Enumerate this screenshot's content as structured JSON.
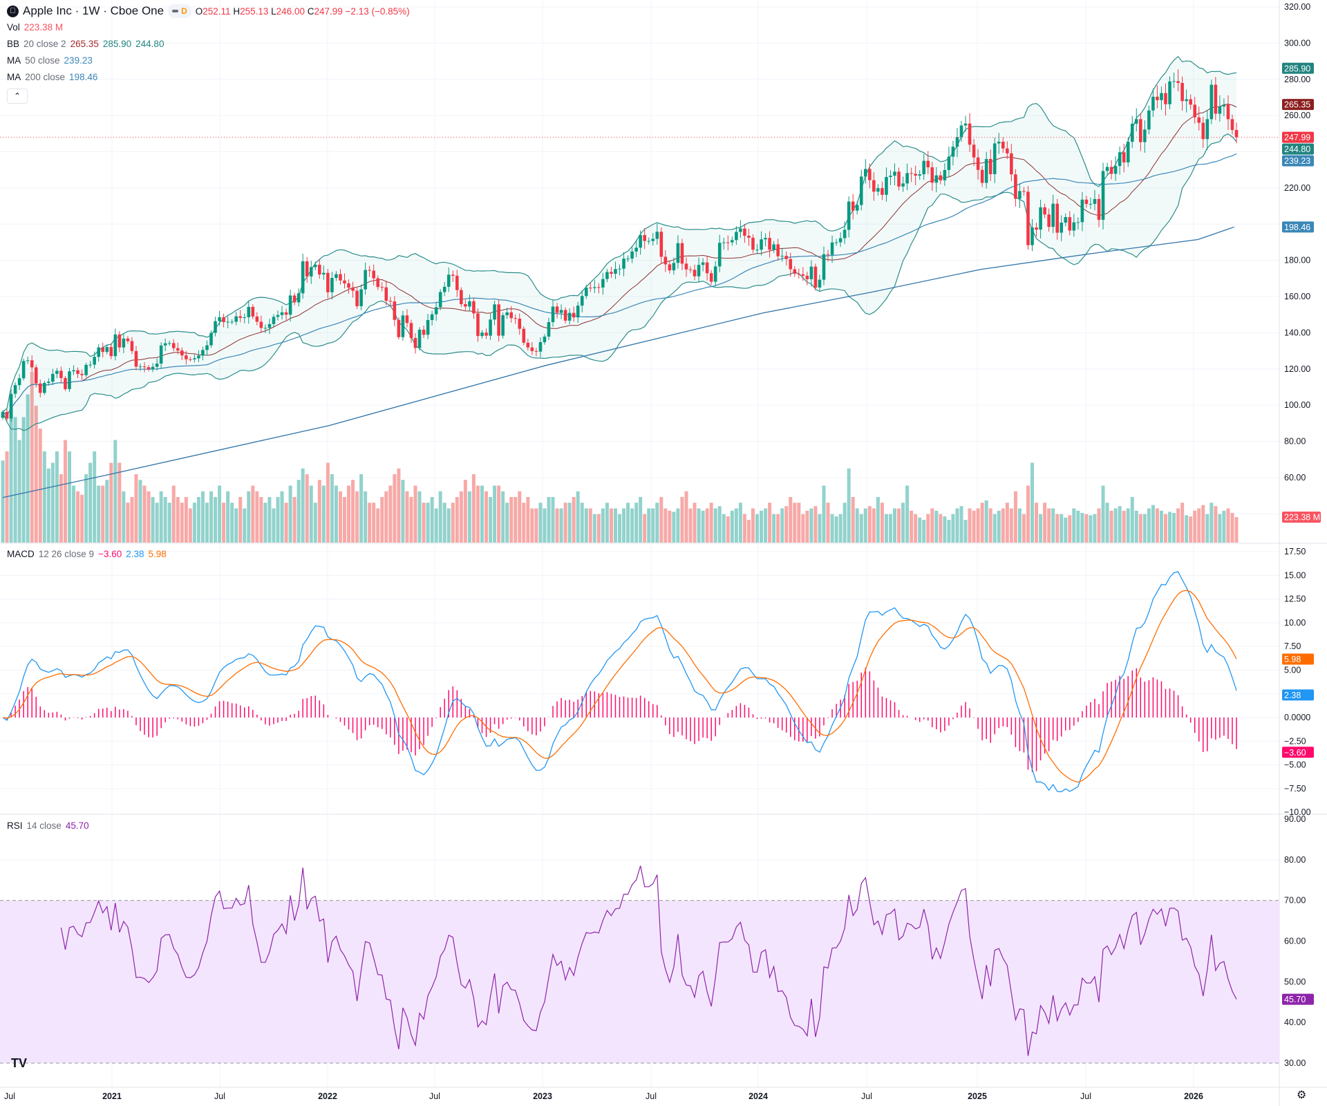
{
  "header": {
    "symbol": "Apple Inc · 1W · Cboe One",
    "logo_icon": "apple-icon",
    "badge": "D",
    "o_label": "O",
    "open": "252.11",
    "h_label": "H",
    "high": "255.13",
    "l_label": "L",
    "low": "246.00",
    "c_label": "C",
    "close": "247.99",
    "change": "−2.13 (−0.85%)"
  },
  "legend": {
    "vol": {
      "name": "Vol",
      "value": "223.38 M"
    },
    "bb": {
      "name": "BB",
      "args": "20 close 2",
      "basis": "265.35",
      "upper": "285.90",
      "lower": "244.80"
    },
    "ma50": {
      "name": "MA",
      "args": "50 close",
      "value": "239.23"
    },
    "ma200": {
      "name": "MA",
      "args": "200 close",
      "value": "198.46"
    },
    "collapse_icon": "chevron-up-icon"
  },
  "macd_legend": {
    "name": "MACD",
    "args": "12 26 close 9",
    "hist": "−3.60",
    "macd": "2.38",
    "signal": "5.98"
  },
  "rsi_legend": {
    "name": "RSI",
    "args": "14 close",
    "value": "45.70"
  },
  "colors": {
    "up": "#089981",
    "down": "#f23645",
    "vol_up": "#92d2cc",
    "vol_down": "#f7a9a7",
    "bb_band": "#2a8d8a",
    "bb_basis": "#8b2f2f",
    "ma50": "#3a87b8",
    "ma200": "#2e73a8",
    "macd": "#2196f3",
    "signal": "#ff6d00",
    "hist": "#ff0a6c",
    "rsi": "#8e24aa",
    "rsi_band": "#f3e5fd"
  },
  "axis_tags": {
    "bb_upper": {
      "text": "285.90",
      "value": 285.9,
      "color": "#22847f"
    },
    "bb_basis": {
      "text": "265.35",
      "value": 265.35,
      "color": "#8b1f1f"
    },
    "last": {
      "text": "247.99",
      "value": 247.99,
      "color": "#f23645"
    },
    "bb_lower": {
      "text": "244.80",
      "value": 244.8,
      "color": "#22847f"
    },
    "ma50": {
      "text": "239.23",
      "value": 239.23,
      "color": "#3a87b8"
    },
    "ma200": {
      "text": "198.46",
      "value": 198.46,
      "color": "#3a87b8"
    },
    "volume": {
      "text": "223.38 M",
      "value": 223.38,
      "color": "#f7525f"
    },
    "signal": {
      "text": "5.98",
      "value": 5.98,
      "color": "#ff6d00"
    },
    "macd": {
      "text": "2.38",
      "value": 2.38,
      "color": "#2196f3"
    },
    "hist": {
      "text": "−3.60",
      "value": -3.6,
      "color": "#ff0a6c"
    },
    "rsi": {
      "text": "45.70",
      "value": 45.7,
      "color": "#8e24aa"
    }
  },
  "chart_data": {
    "type": "candlestick",
    "interval": "1W",
    "price_ticks": [
      "320.00",
      "300.00",
      "280.00",
      "260.00",
      "220.00",
      "180.00",
      "160.00",
      "140.00",
      "120.00",
      "100.00",
      "80.00",
      "60.00"
    ],
    "price_range": [
      60,
      320
    ],
    "macd_ticks": [
      "17.50",
      "15.00",
      "12.50",
      "10.00",
      "7.50",
      "5.00",
      "0.0000",
      "−2.50",
      "−5.00",
      "−7.50",
      "−10.00"
    ],
    "macd_range": [
      -10,
      17.5
    ],
    "rsi_ticks": [
      "90.00",
      "80.00",
      "70.00",
      "60.00",
      "50.00",
      "40.00",
      "30.00"
    ],
    "rsi_range": [
      30,
      90
    ],
    "rsi_band": [
      30,
      70
    ],
    "time_labels": [
      "Jul",
      "2021",
      "Jul",
      "2022",
      "Jul",
      "2023",
      "Jul",
      "2024",
      "Jul",
      "2025",
      "Jul",
      "2026"
    ],
    "first_week": "2020-07-13",
    "closes": [
      96.3,
      92.6,
      106.3,
      111.1,
      114.9,
      124.4,
      124.8,
      120.9,
      112.0,
      106.8,
      112.3,
      113.0,
      117.3,
      119.0,
      115.0,
      108.9,
      118.7,
      119.3,
      117.3,
      116.6,
      122.3,
      122.4,
      126.7,
      131.9,
      129.4,
      132.1,
      127.1,
      139.1,
      131.9,
      136.8,
      135.4,
      129.9,
      121.3,
      121.4,
      121.0,
      119.9,
      121.2,
      123.0,
      133.0,
      134.2,
      134.3,
      131.5,
      130.2,
      127.5,
      125.4,
      125.3,
      125.9,
      127.4,
      130.5,
      133.1,
      139.96,
      146.4,
      148.6,
      145.9,
      146.1,
      146.1,
      149.1,
      148.2,
      148.6,
      154.3,
      148.97,
      146.1,
      142.7,
      142.7,
      144.8,
      148.8,
      149.8,
      151.3,
      149.99,
      160.6,
      156.8,
      161.8,
      179.5,
      171.1,
      176.3,
      177.6,
      172.2,
      173.1,
      162.4,
      170.3,
      172.4,
      168.9,
      167.3,
      164.9,
      163.2,
      154.7,
      163.98,
      174.7,
      174.3,
      170.1,
      165.3,
      165.1,
      157.7,
      157.3,
      147.1,
      137.6,
      149.6,
      145.4,
      137.1,
      131.6,
      141.7,
      138.9,
      147.04,
      150.2,
      154.1,
      162.5,
      165.4,
      172.1,
      171.5,
      163.6,
      155.8,
      154.5,
      157.4,
      150.7,
      138.2,
      140.1,
      138.4,
      147.3,
      155.7,
      138.4,
      149.7,
      151.3,
      148.1,
      147.8,
      142.2,
      134.5,
      131.9,
      129.9,
      129.6,
      134.8,
      137.9,
      145.9,
      154.5,
      151.0,
      152.6,
      146.7,
      151.0,
      148.5,
      155.0,
      160.3,
      164.9,
      164.7,
      165.2,
      165.0,
      169.7,
      173.6,
      172.6,
      175.2,
      175.4,
      180.95,
      180.96,
      184.9,
      187.0,
      193.97,
      190.7,
      190.7,
      191.9,
      195.8,
      181.99,
      177.8,
      174.5,
      178.6,
      189.5,
      178.2,
      175.0,
      174.8,
      171.2,
      177.5,
      178.85,
      172.9,
      168.2,
      176.65,
      189.7,
      189.97,
      189.95,
      191.2,
      195.7,
      197.6,
      193.6,
      192.5,
      185.9,
      185.9,
      191.6,
      192.4,
      185.85,
      188.85,
      182.3,
      182.5,
      180.75,
      175.1,
      172.6,
      172.3,
      171.5,
      169.6,
      176.55,
      165.0,
      169.3,
      183.4,
      183.05,
      189.9,
      189.98,
      192.25,
      196.9,
      212.5,
      207.5,
      210.6,
      226.3,
      230.5,
      224.3,
      217.96,
      219.9,
      216.2,
      226.05,
      226.8,
      229.0,
      220.8,
      222.5,
      228.2,
      227.8,
      226.8,
      227.55,
      235.0,
      231.4,
      222.9,
      226.96,
      224.2,
      229.9,
      237.3,
      242.8,
      248.1,
      254.5,
      255.6,
      243.9,
      236.85,
      229.98,
      222.8,
      236.0,
      227.6,
      244.6,
      245.55,
      241.8,
      239.1,
      227.5,
      214.0,
      218.3,
      217.9,
      188.4,
      198.15,
      196.98,
      209.3,
      205.35,
      198.5,
      211.3,
      195.3,
      200.85,
      203.9,
      196.45,
      201.0,
      201.1,
      213.55,
      211.2,
      211.2,
      213.9,
      202.4,
      229.35,
      231.6,
      227.8,
      232.1,
      239.7,
      234.1,
      245.5,
      255.5,
      258.0,
      245.3,
      252.3,
      262.8,
      270.4,
      268.5,
      272.4,
      266.25,
      278.85,
      279.0,
      278.0,
      268.0,
      269.0,
      266.0,
      259.0,
      256.0,
      247.0,
      258.0,
      277.0,
      261.0,
      265.0,
      266.0,
      258.0,
      252.0,
      247.99
    ],
    "volumes_m": [
      720,
      800,
      1200,
      1100,
      900,
      1100,
      1300,
      1500,
      1200,
      1000,
      800,
      650,
      700,
      800,
      600,
      900,
      800,
      500,
      450,
      420,
      600,
      700,
      800,
      500,
      500,
      550,
      700,
      900,
      700,
      450,
      350,
      400,
      600,
      550,
      500,
      450,
      400,
      350,
      450,
      400,
      350,
      500,
      400,
      350,
      400,
      300,
      350,
      400,
      450,
      350,
      450,
      400,
      500,
      350,
      450,
      350,
      300,
      400,
      300,
      450,
      500,
      450,
      400,
      350,
      400,
      300,
      400,
      450,
      350,
      500,
      400,
      550,
      650,
      600,
      500,
      350,
      550,
      500,
      700,
      600,
      500,
      450,
      400,
      500,
      550,
      450,
      600,
      450,
      350,
      350,
      300,
      400,
      450,
      500,
      600,
      650,
      550,
      450,
      400,
      500,
      450,
      350,
      350,
      400,
      300,
      450,
      350,
      300,
      350,
      400,
      450,
      550,
      450,
      600,
      500,
      500,
      450,
      400,
      500,
      500,
      450,
      350,
      400,
      400,
      450,
      350,
      400,
      300,
      300,
      350,
      300,
      400,
      400,
      300,
      300,
      350,
      350,
      400,
      450,
      350,
      300,
      300,
      250,
      250,
      300,
      350,
      300,
      300,
      250,
      300,
      350,
      300,
      350,
      400,
      250,
      300,
      300,
      350,
      400,
      300,
      280,
      270,
      300,
      400,
      450,
      300,
      350,
      300,
      280,
      300,
      350,
      300,
      320,
      250,
      230,
      280,
      300,
      350,
      250,
      200,
      300,
      250,
      280,
      300,
      350,
      250,
      250,
      300,
      320,
      400,
      350,
      350,
      250,
      280,
      300,
      320,
      250,
      500,
      350,
      250,
      230,
      250,
      350,
      650,
      400,
      300,
      250,
      300,
      320,
      300,
      400,
      350,
      250,
      250,
      300,
      300,
      350,
      500,
      280,
      250,
      220,
      200,
      250,
      300,
      280,
      250,
      230,
      200,
      250,
      300,
      320,
      200,
      300,
      280,
      300,
      350,
      370,
      300,
      250,
      280,
      300,
      350,
      300,
      450,
      300,
      250,
      500,
      700,
      350,
      250,
      350,
      300,
      300,
      250,
      250,
      220,
      240,
      300,
      280,
      260,
      250,
      240,
      250,
      300,
      500,
      350,
      280,
      300,
      320,
      280,
      300,
      400,
      280,
      250,
      250,
      300,
      330,
      300,
      280,
      250,
      270,
      260,
      300,
      350,
      240,
      230,
      280,
      300,
      330,
      250,
      350,
      320,
      250,
      280,
      300,
      260,
      223.38
    ],
    "ma200": [
      {
        "date": "2020-07",
        "value": 49
      },
      {
        "date": "2021-01",
        "value": 62
      },
      {
        "date": "2022-01",
        "value": 88.7
      },
      {
        "date": "2023-01",
        "value": 122
      },
      {
        "date": "2024-01",
        "value": 151
      },
      {
        "date": "2024-07",
        "value": 162.5
      },
      {
        "date": "2025-01",
        "value": 175
      },
      {
        "date": "2025-07",
        "value": 183.6
      },
      {
        "date": "2026-01",
        "value": 191.5
      },
      {
        "date": "2026-03",
        "value": 198.46
      }
    ]
  }
}
